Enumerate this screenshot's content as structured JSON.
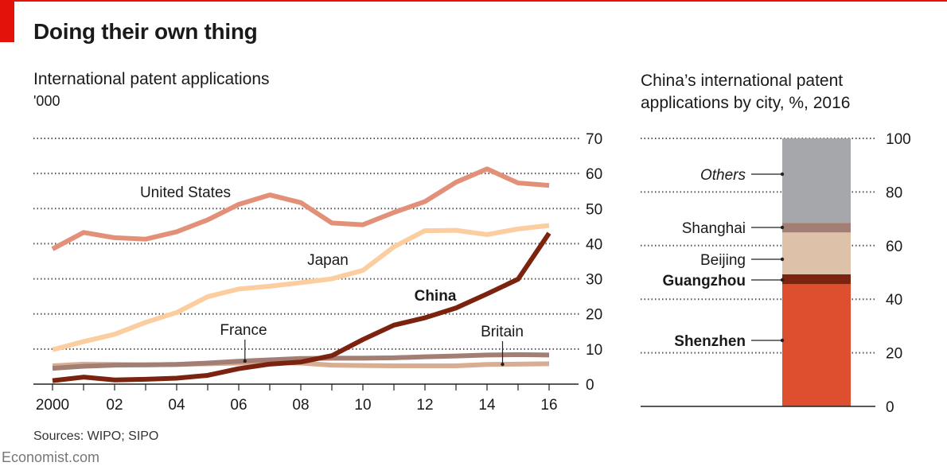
{
  "header": {
    "title": "Doing their own thing",
    "source": "Sources: WIPO; SIPO",
    "brand": "Economist.com"
  },
  "chart_data": [
    {
      "type": "line",
      "title": "International patent applications",
      "ylabel": "'000",
      "xlabel": "",
      "x": [
        2000,
        2001,
        2002,
        2003,
        2004,
        2005,
        2006,
        2007,
        2008,
        2009,
        2010,
        2011,
        2012,
        2013,
        2014,
        2015,
        2016
      ],
      "xticks": [
        2000,
        2002,
        2004,
        2006,
        2008,
        2010,
        2012,
        2014,
        2016
      ],
      "xtick_labels": [
        "2000",
        "02",
        "04",
        "06",
        "08",
        "10",
        "12",
        "14",
        "16"
      ],
      "ylim": [
        0,
        70
      ],
      "yticks": [
        0,
        10,
        20,
        30,
        40,
        50,
        60,
        70
      ],
      "ytick_labels": [
        "0",
        "10",
        "20",
        "30",
        "40",
        "50",
        "60",
        "70"
      ],
      "yaxis_side": "right",
      "grid": "dotted horizontal",
      "series": [
        {
          "name": "United States",
          "color": "#e39079",
          "label_style": "normal",
          "values": [
            38.5,
            43.2,
            41.7,
            41.3,
            43.4,
            46.8,
            51.2,
            53.9,
            51.7,
            45.9,
            45.4,
            48.9,
            52.0,
            57.5,
            61.3,
            57.3,
            56.6
          ]
        },
        {
          "name": "Japan",
          "color": "#fbcd9f",
          "label_style": "normal",
          "values": [
            9.8,
            12.1,
            14.2,
            17.6,
            20.4,
            24.9,
            27.1,
            27.9,
            28.9,
            30.0,
            32.4,
            39.1,
            43.7,
            43.8,
            42.6,
            44.2,
            45.2
          ]
        },
        {
          "name": "China",
          "color": "#7c2310",
          "label_style": "bold",
          "values": [
            1.0,
            2.0,
            1.2,
            1.4,
            1.7,
            2.5,
            4.4,
            5.7,
            6.3,
            8.1,
            12.7,
            16.8,
            18.9,
            21.7,
            25.7,
            29.9,
            43.0
          ]
        },
        {
          "name": "France",
          "color": "#a27e74",
          "label_style": "normal",
          "values": [
            4.5,
            5.1,
            5.4,
            5.5,
            5.6,
            6.0,
            6.5,
            6.9,
            7.3,
            7.4,
            7.4,
            7.5,
            7.8,
            8.0,
            8.3,
            8.4,
            8.3
          ]
        },
        {
          "name": "Britain",
          "color": "#d9ad92",
          "label_style": "normal",
          "values": [
            5.2,
            5.7,
            5.6,
            5.5,
            5.6,
            5.8,
            6.0,
            6.1,
            6.0,
            5.4,
            5.3,
            5.2,
            5.2,
            5.2,
            5.6,
            5.7,
            5.8
          ]
        }
      ]
    },
    {
      "type": "bar",
      "subtype": "stacked",
      "title": "China’s international patent applications by city, %, 2016",
      "ylim": [
        0,
        100
      ],
      "yticks": [
        0,
        20,
        40,
        60,
        80,
        100
      ],
      "ytick_labels": [
        "0",
        "20",
        "40",
        "60",
        "80",
        "100"
      ],
      "yaxis_side": "right",
      "grid": "dotted horizontal",
      "segments": [
        {
          "name": "Shenzhen",
          "value": 45.6,
          "color": "#dd4f2e",
          "label_style": "bold"
        },
        {
          "name": "Guangzhou",
          "value": 3.7,
          "color": "#7c2310",
          "label_style": "bold"
        },
        {
          "name": "Beijing",
          "value": 15.6,
          "color": "#ddc1a8",
          "label_style": "normal"
        },
        {
          "name": "Shanghai",
          "value": 3.6,
          "color": "#a27e74",
          "label_style": "normal"
        },
        {
          "name": "Others",
          "value": 31.5,
          "color": "#a6a7aa",
          "label_style": "italic"
        }
      ]
    }
  ]
}
